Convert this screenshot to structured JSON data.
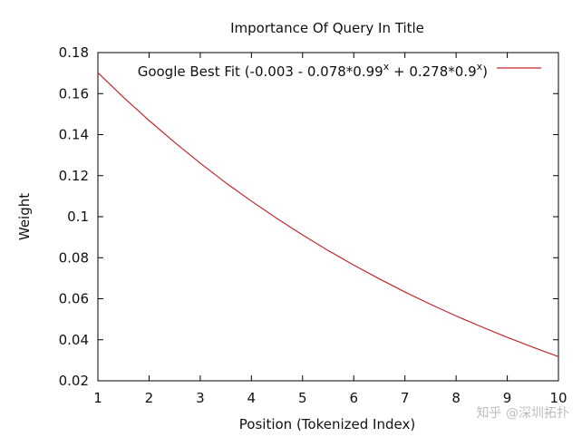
{
  "chart_data": {
    "type": "line",
    "title": "Importance Of Query In Title",
    "xlabel": "Position (Tokenized Index)",
    "ylabel": "Weight",
    "xlim": [
      1,
      10
    ],
    "ylim": [
      0.02,
      0.18
    ],
    "x_ticks": [
      "1",
      "2",
      "3",
      "4",
      "5",
      "6",
      "7",
      "8",
      "9",
      "10"
    ],
    "y_ticks": [
      "0.02",
      "0.04",
      "0.06",
      "0.08",
      "0.1",
      "0.12",
      "0.14",
      "0.16",
      "0.18"
    ],
    "grid": false,
    "legend_position": "top-right",
    "series": [
      {
        "name": "Google Best Fit (-0.003 - 0.078*0.99^x + 0.278*0.9^x)",
        "color": "#c0272d",
        "x": [
          1,
          1.5,
          2,
          2.5,
          3,
          3.5,
          4,
          4.5,
          5,
          5.5,
          6,
          6.5,
          7,
          7.5,
          8,
          8.5,
          9,
          9.5,
          10
        ],
        "values": [
          0.1702,
          0.1582,
          0.1469,
          0.1362,
          0.1261,
          0.1165,
          0.1076,
          0.0991,
          0.0911,
          0.0835,
          0.0764,
          0.0697,
          0.0633,
          0.0573,
          0.0516,
          0.0463,
          0.0412,
          0.0364,
          0.0318
        ]
      }
    ]
  },
  "legend": {
    "text_main": "Google Best Fit (-0.003 - 0.078*0.99",
    "sup1": "x",
    "text_mid": " + 0.278*0.9",
    "sup2": "x",
    "text_end": ")"
  },
  "watermark": "知乎 @深圳拓扑"
}
